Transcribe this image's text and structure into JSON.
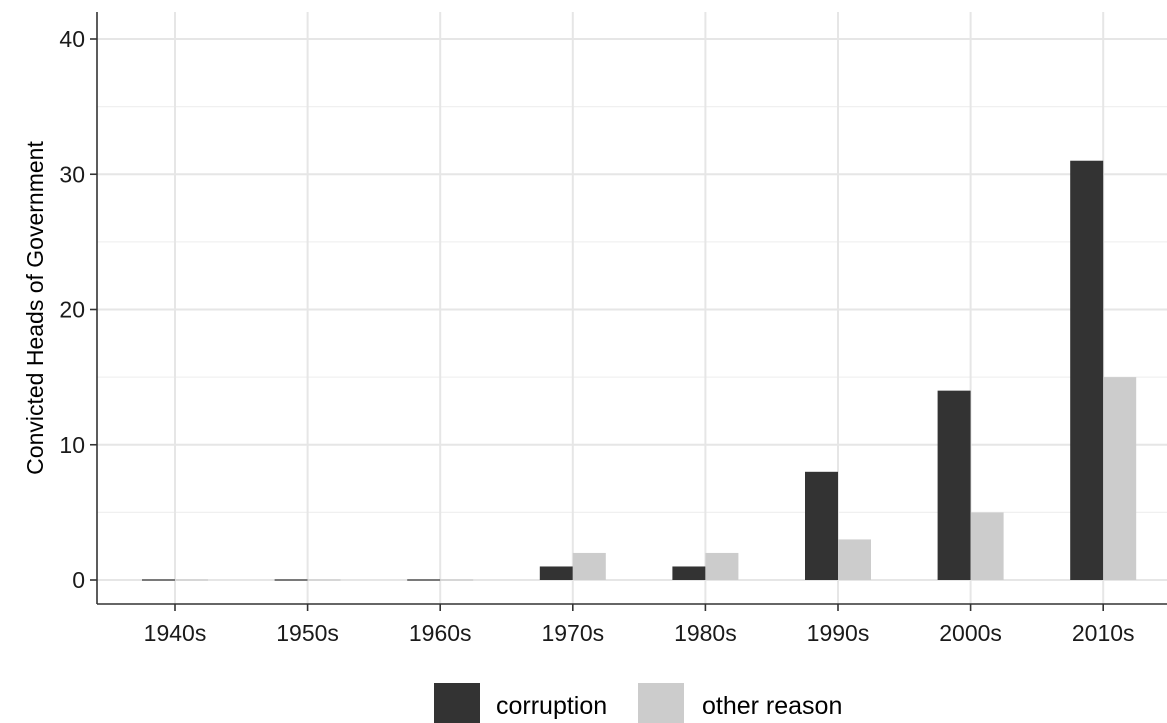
{
  "chart_data": {
    "type": "bar",
    "title": "",
    "xlabel": "",
    "ylabel": "Convicted Heads of Government",
    "categories": [
      "1940s",
      "1950s",
      "1960s",
      "1970s",
      "1980s",
      "1990s",
      "2000s",
      "2010s"
    ],
    "series": [
      {
        "name": "corruption",
        "color": "#333333",
        "values": [
          0,
          0,
          0,
          1,
          1,
          8,
          14,
          31
        ]
      },
      {
        "name": "other reason",
        "color": "#cccccc",
        "values": [
          0,
          0,
          0,
          2,
          2,
          3,
          5,
          15
        ]
      }
    ],
    "ylim": [
      -2,
      42
    ],
    "yticks": [
      0,
      10,
      20,
      30,
      40
    ],
    "grid": true,
    "legend": "bottom"
  }
}
